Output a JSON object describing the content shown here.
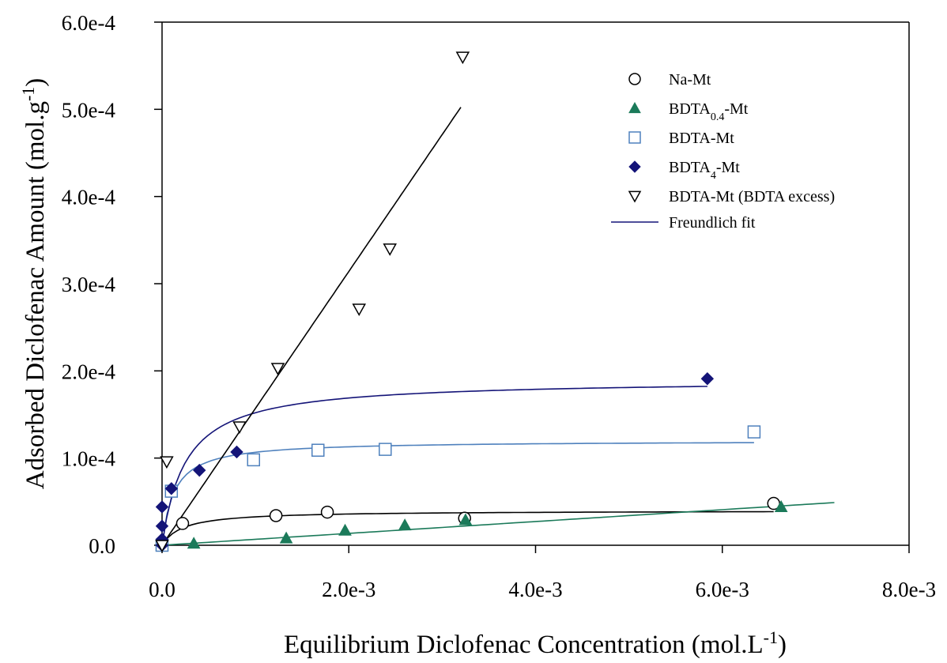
{
  "chart_data": {
    "type": "scatter",
    "xlabel": {
      "main": "Equilibrium Diclofenac Concentration (mol.L",
      "sup": "-1",
      "close": ")"
    },
    "ylabel": {
      "main": "Adsorbed Diclofenac Amount (mol.g",
      "sup": "-1",
      "close": ")"
    },
    "xlim": [
      0,
      0.008
    ],
    "ylim": [
      0,
      0.0006
    ],
    "xticks": [
      {
        "value": 0,
        "label": "0.0"
      },
      {
        "value": 0.002,
        "label": "2.0e-3"
      },
      {
        "value": 0.004,
        "label": "4.0e-3"
      },
      {
        "value": 0.006,
        "label": "6.0e-3"
      },
      {
        "value": 0.008,
        "label": "8.0e-3"
      }
    ],
    "yticks": [
      {
        "value": 0,
        "label": "0.0"
      },
      {
        "value": 0.0001,
        "label": "1.0e-4"
      },
      {
        "value": 0.0002,
        "label": "2.0e-4"
      },
      {
        "value": 0.0003,
        "label": "3.0e-4"
      },
      {
        "value": 0.0004,
        "label": "4.0e-4"
      },
      {
        "value": 0.0005,
        "label": "5.0e-4"
      },
      {
        "value": 0.0006,
        "label": "6.0e-4"
      }
    ],
    "grid": false,
    "legend_position": "top-right",
    "series": [
      {
        "key": "na-mt",
        "name": "Na-Mt",
        "marker": "circle-open",
        "color": "#000000",
        "points": [
          [
            0.0,
            0.0
          ],
          [
            0.00022,
            2.5e-05
          ],
          [
            0.00122,
            3.4e-05
          ],
          [
            0.00177,
            3.8e-05
          ],
          [
            0.00324,
            3.1e-05
          ],
          [
            0.00655,
            4.8e-05
          ]
        ],
        "fit": {
          "type": "langmuir",
          "qmax": 3.98e-05,
          "K": 4500,
          "x_end": 0.00655,
          "color": "#000000"
        }
      },
      {
        "key": "bdta04-mt",
        "name": {
          "pre": "BDTA",
          "sub": "0.4",
          "post": "-Mt"
        },
        "marker": "triangle-up-filled",
        "color": "#1b7a5a",
        "points": [
          [
            0.0,
            0.0
          ],
          [
            0.00034,
            2e-06
          ],
          [
            0.00133,
            8e-06
          ],
          [
            0.00196,
            1.7e-05
          ],
          [
            0.0026,
            2.3e-05
          ],
          [
            0.00325,
            2.9e-05
          ],
          [
            0.00663,
            4.4e-05
          ]
        ],
        "fit": {
          "type": "linear",
          "slope": 0.0068,
          "intercept": 0.0,
          "x_end": 0.0072,
          "color": "#1b7a5a"
        }
      },
      {
        "key": "bdta-mt",
        "name": "BDTA-Mt",
        "marker": "square-open",
        "color": "#4f81bd",
        "points": [
          [
            0.0,
            0.0
          ],
          [
            0.0001,
            6.2e-05
          ],
          [
            0.00098,
            9.8e-05
          ],
          [
            0.00167,
            0.000109
          ],
          [
            0.00239,
            0.00011
          ],
          [
            0.00634,
            0.00013
          ]
        ],
        "fit": {
          "type": "langmuir",
          "qmax": 0.00012,
          "K": 8000,
          "x_end": 0.00634,
          "color": "#4f81bd"
        }
      },
      {
        "key": "bdta4-mt",
        "name": {
          "pre": "BDTA",
          "sub": "4",
          "post": "-Mt"
        },
        "marker": "diamond-filled",
        "color": "#141478",
        "points": [
          [
            0.0,
            0.0
          ],
          [
            0.0,
            7e-06
          ],
          [
            0.0,
            2.2e-05
          ],
          [
            0.0,
            4.4e-05
          ],
          [
            0.0001,
            6.5e-05
          ],
          [
            0.0004,
            8.6e-05
          ],
          [
            0.0008,
            0.000107
          ],
          [
            0.00584,
            0.000191
          ]
        ],
        "fit": {
          "type": "langmuir",
          "qmax": 0.00019,
          "K": 4000,
          "x_end": 0.00584,
          "color": "#141478"
        }
      },
      {
        "key": "bdta-mt-excess",
        "name": "BDTA-Mt (BDTA excess)",
        "marker": "triangle-down-open",
        "color": "#000000",
        "points": [
          [
            0.0,
            0.0
          ],
          [
            5e-05,
            9.6e-05
          ],
          [
            0.00083,
            0.000136
          ],
          [
            0.00124,
            0.000203
          ],
          [
            0.00211,
            0.000271
          ],
          [
            0.00244,
            0.00034
          ],
          [
            0.00322,
            0.00056
          ]
        ],
        "fit": {
          "type": "linear",
          "slope": 0.157,
          "intercept": 0.0,
          "x_end": 0.0032,
          "color": "#000000"
        }
      }
    ],
    "legend_fit_entry": {
      "name": "Freundlich fit",
      "color": "#141478"
    }
  }
}
